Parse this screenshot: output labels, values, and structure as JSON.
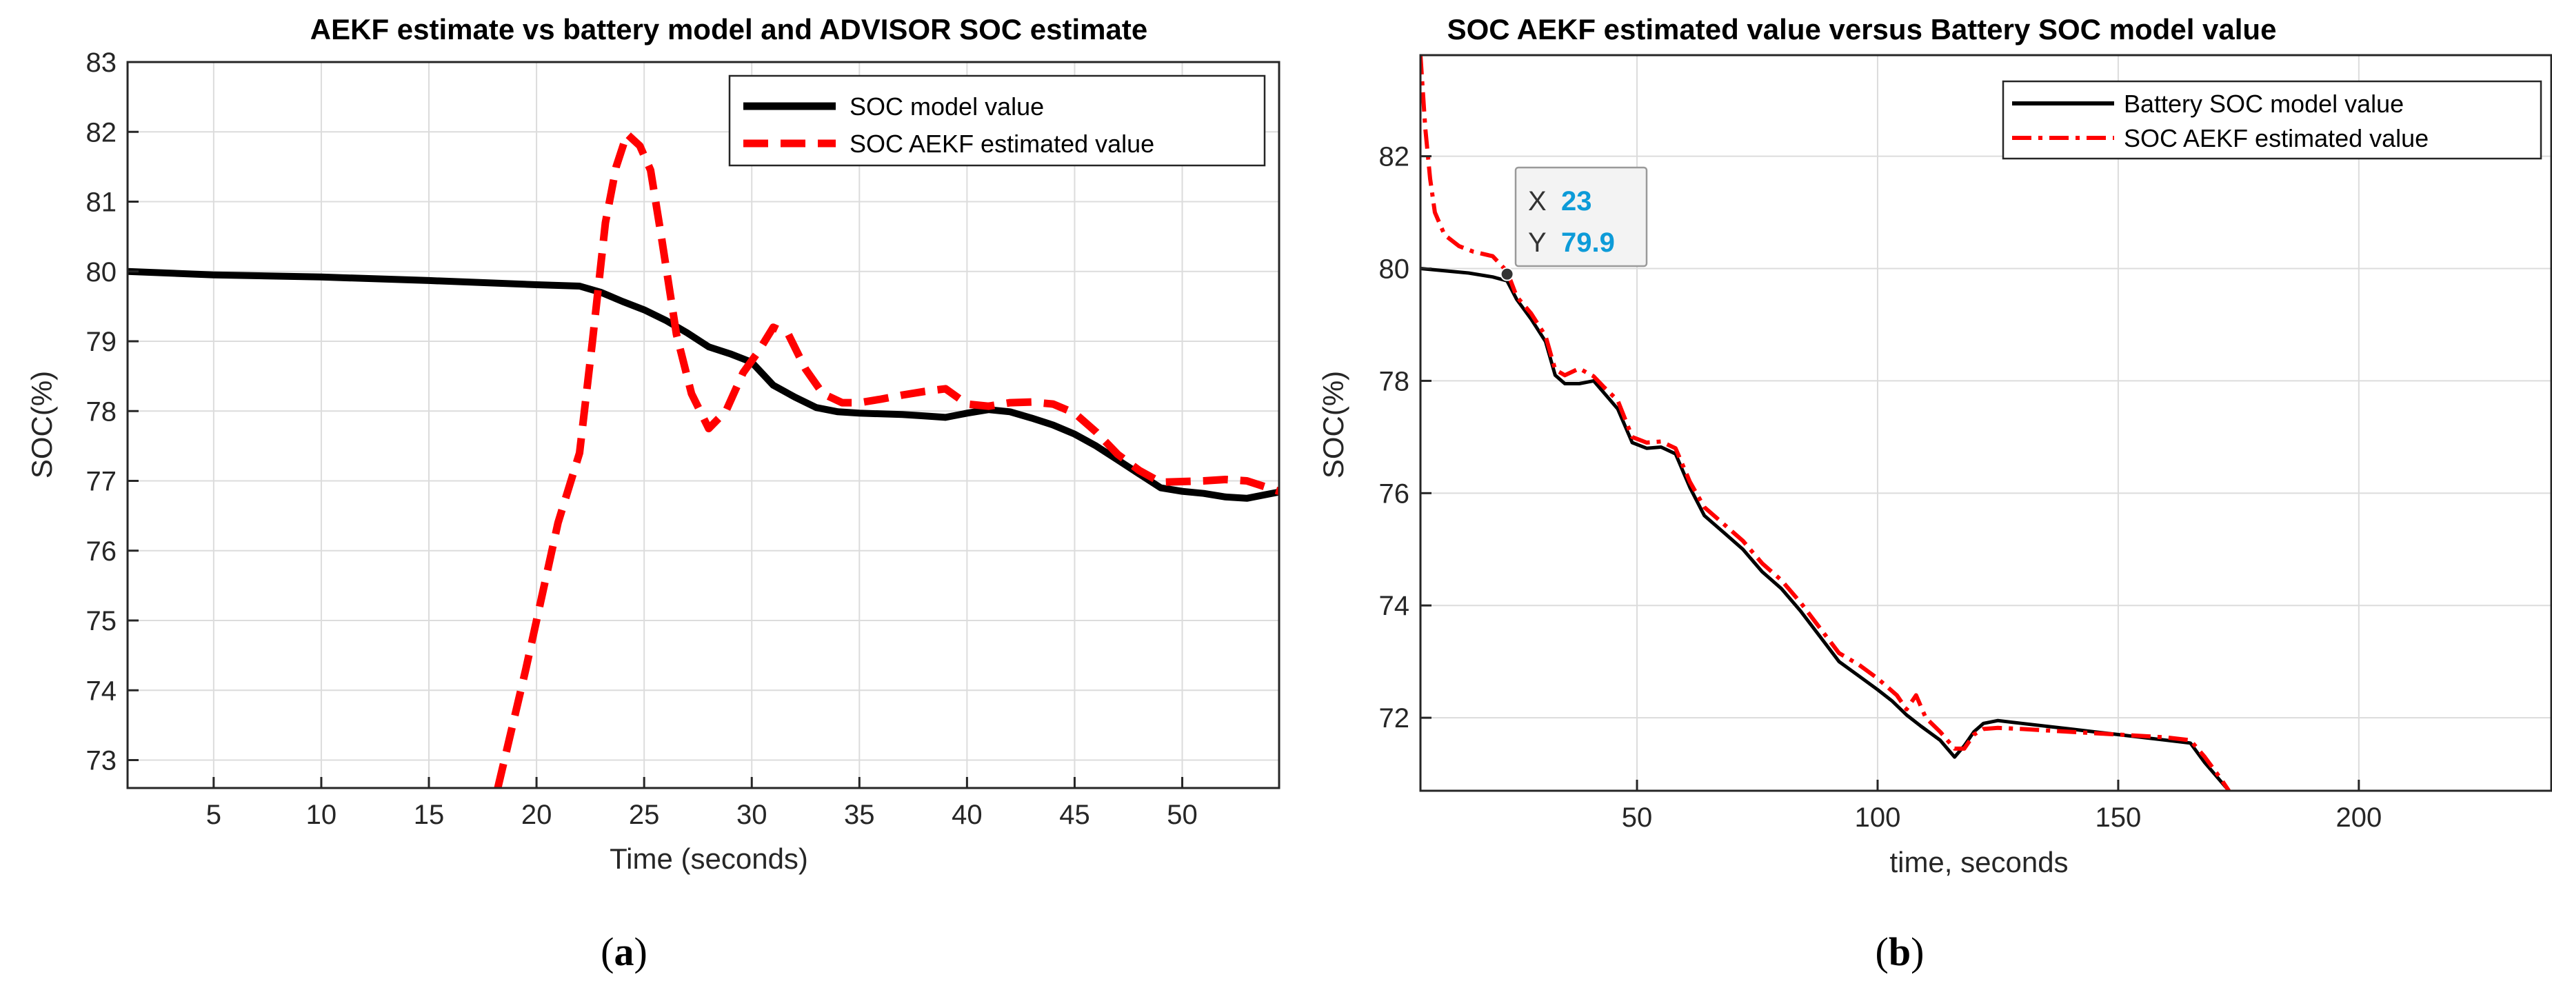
{
  "colors": {
    "model": "#000000",
    "aekf": "#ff0000",
    "tooltip_value": "#0d9bd8"
  },
  "chart_data": [
    {
      "type": "line",
      "panel": "a",
      "caption_letter": "a",
      "title": "AEKF estimate vs battery model and ADVISOR SOC estimate",
      "xlabel": "Time (seconds)",
      "ylabel": "SOC(%)",
      "xlim": [
        1,
        54.5
      ],
      "ylim": [
        72.6,
        83
      ],
      "xticks": [
        5,
        10,
        15,
        20,
        25,
        30,
        35,
        40,
        45,
        50
      ],
      "yticks": [
        73,
        74,
        75,
        76,
        77,
        78,
        79,
        80,
        81,
        82,
        83
      ],
      "grid": true,
      "legend_position": "top-right",
      "series": [
        {
          "name": "SOC model value",
          "style": "solid",
          "x": [
            1,
            5,
            10,
            15,
            20,
            22,
            23,
            24,
            25,
            26,
            27,
            28,
            29,
            30,
            31,
            32,
            33,
            34,
            35,
            36,
            37,
            38,
            39,
            40,
            41,
            42,
            43,
            44,
            45,
            46,
            47,
            48,
            49,
            50,
            51,
            52,
            53,
            54.5
          ],
          "y": [
            80.0,
            79.95,
            79.92,
            79.87,
            79.81,
            79.79,
            79.7,
            79.57,
            79.45,
            79.3,
            79.12,
            78.92,
            78.82,
            78.7,
            78.37,
            78.2,
            78.05,
            77.99,
            77.97,
            77.96,
            77.95,
            77.93,
            77.91,
            77.97,
            78.02,
            77.99,
            77.9,
            77.8,
            77.67,
            77.5,
            77.3,
            77.1,
            76.9,
            76.85,
            76.82,
            76.77,
            76.75,
            76.84
          ]
        },
        {
          "name": "SOC AEKF estimated value",
          "style": "dashed",
          "x": [
            18.2,
            19.5,
            21,
            22,
            22.6,
            23.2,
            23.7,
            24.2,
            24.8,
            25.3,
            25.8,
            26.5,
            27.2,
            28,
            28.8,
            29.6,
            30.3,
            31,
            31.7,
            32.5,
            33.3,
            34.2,
            35,
            36,
            37,
            38,
            39,
            40,
            41,
            42,
            43,
            44,
            45,
            46,
            47,
            48,
            49,
            50,
            51,
            52,
            53,
            54.5
          ],
          "y": [
            72.6,
            74.3,
            76.4,
            77.4,
            79.0,
            80.7,
            81.5,
            81.97,
            81.8,
            81.45,
            80.5,
            79.1,
            78.25,
            77.75,
            78.0,
            78.55,
            78.85,
            79.2,
            79.1,
            78.6,
            78.25,
            78.12,
            78.12,
            78.17,
            78.23,
            78.28,
            78.32,
            78.1,
            78.07,
            78.12,
            78.13,
            78.1,
            77.97,
            77.7,
            77.38,
            77.15,
            76.98,
            76.99,
            77.0,
            77.02,
            77.0,
            76.85
          ]
        }
      ]
    },
    {
      "type": "line",
      "panel": "b",
      "caption_letter": "b",
      "title": "SOC AEKF estimated value versus Battery SOC model value",
      "xlabel": "time, seconds",
      "ylabel": "SOC(%)",
      "xlim": [
        5,
        240
      ],
      "ylim": [
        70.7,
        83.8
      ],
      "xticks": [
        50,
        100,
        150,
        200
      ],
      "yticks": [
        72,
        74,
        76,
        78,
        80,
        82
      ],
      "grid": true,
      "legend_position": "top-right",
      "datatip": {
        "x_label": "X",
        "x_value": "23",
        "y_label": "Y",
        "y_value": "79.9",
        "x": 23,
        "y": 79.9
      },
      "series": [
        {
          "name": "Battery SOC model value",
          "style": "solid",
          "x": [
            5,
            10,
            15,
            20,
            23,
            25,
            28,
            31,
            33,
            35,
            38,
            41,
            43,
            46,
            49,
            52,
            55,
            58,
            61,
            64,
            68,
            72,
            76,
            80,
            84,
            88,
            92,
            96,
            100,
            103,
            106,
            109,
            113,
            116,
            118,
            120,
            122,
            125,
            130,
            140,
            150,
            160,
            165,
            168,
            171,
            173
          ],
          "y": [
            80.0,
            79.96,
            79.92,
            79.85,
            79.78,
            79.45,
            79.1,
            78.7,
            78.1,
            77.95,
            77.95,
            78.0,
            77.8,
            77.5,
            76.9,
            76.8,
            76.82,
            76.7,
            76.1,
            75.6,
            75.3,
            75.0,
            74.6,
            74.3,
            73.9,
            73.45,
            73.0,
            72.75,
            72.5,
            72.3,
            72.05,
            71.85,
            71.6,
            71.3,
            71.5,
            71.75,
            71.9,
            71.95,
            71.9,
            71.8,
            71.7,
            71.6,
            71.55,
            71.2,
            70.9,
            70.7
          ]
        },
        {
          "name": "SOC AEKF estimated value",
          "style": "dashdot",
          "x": [
            5,
            6,
            7,
            8,
            10,
            13,
            16,
            20,
            23,
            25,
            28,
            31,
            33,
            35,
            38,
            41,
            43,
            46,
            49,
            52,
            55,
            58,
            61,
            64,
            68,
            72,
            76,
            80,
            84,
            88,
            92,
            96,
            100,
            104,
            106,
            108,
            110,
            113,
            116,
            118,
            120,
            122,
            125,
            130,
            140,
            150,
            160,
            165,
            168,
            171,
            173
          ],
          "y": [
            83.8,
            82.5,
            81.6,
            81.0,
            80.6,
            80.4,
            80.3,
            80.22,
            79.95,
            79.5,
            79.2,
            78.8,
            78.2,
            78.1,
            78.22,
            78.08,
            77.9,
            77.65,
            77.0,
            76.9,
            76.92,
            76.8,
            76.2,
            75.75,
            75.45,
            75.15,
            74.75,
            74.45,
            74.05,
            73.6,
            73.15,
            72.95,
            72.7,
            72.4,
            72.15,
            72.4,
            72.0,
            71.75,
            71.45,
            71.45,
            71.7,
            71.8,
            71.82,
            71.8,
            71.75,
            71.7,
            71.65,
            71.6,
            71.3,
            70.95,
            70.7
          ]
        }
      ]
    }
  ]
}
